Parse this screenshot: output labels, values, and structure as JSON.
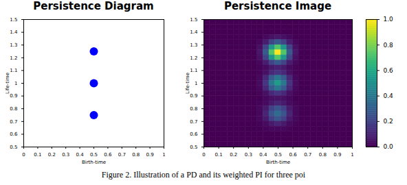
{
  "chart_data": [
    {
      "type": "scatter",
      "title": "Persistence Diagram",
      "x": [
        0.5,
        0.5,
        0.5
      ],
      "y": [
        0.75,
        1.0,
        1.25
      ],
      "color": "#0000ff",
      "xlabel": "Birth-time",
      "ylabel": "Life-time",
      "xlim": [
        0,
        1
      ],
      "ylim": [
        0.5,
        1.5
      ],
      "xticks": [
        0,
        0.1,
        0.2,
        0.3,
        0.4,
        0.5,
        0.6,
        0.7,
        0.8,
        0.9,
        1
      ],
      "yticks": [
        0.5,
        0.6,
        0.7,
        0.8,
        0.9,
        1,
        1.1,
        1.2,
        1.3,
        1.4,
        1.5
      ]
    },
    {
      "type": "heatmap",
      "title": "Persistence Image",
      "xlabel": "Birth-time",
      "ylabel": "Life-time",
      "xlim": [
        0,
        1
      ],
      "ylim": [
        0.5,
        1.5
      ],
      "xticks": [
        0,
        0.1,
        0.2,
        0.3,
        0.4,
        0.5,
        0.6,
        0.7,
        0.8,
        0.9,
        1
      ],
      "yticks": [
        0.5,
        0.6,
        0.7,
        0.8,
        0.9,
        1,
        1.1,
        1.2,
        1.3,
        1.4,
        1.5
      ],
      "z": [
        [
          0,
          0,
          0,
          0,
          0,
          0,
          0,
          0,
          0,
          0,
          0,
          0,
          0,
          0,
          0,
          0,
          0,
          0,
          0,
          0,
          0,
          0,
          0,
          0,
          0
        ],
        [
          0,
          0,
          0,
          0,
          0,
          0,
          0,
          0,
          0,
          0,
          0,
          0,
          0,
          0,
          0,
          0,
          0,
          0,
          0,
          0,
          0,
          0,
          0,
          0,
          0
        ],
        [
          0,
          0,
          0,
          0,
          0,
          0,
          0,
          0,
          0,
          0,
          0,
          0,
          0,
          0,
          0,
          0,
          0,
          0,
          0,
          0,
          0,
          0,
          0,
          0,
          0
        ],
        [
          0,
          0,
          0,
          0,
          0,
          0,
          0,
          0,
          0,
          0,
          0.02,
          0.04,
          0.06,
          0.04,
          0.02,
          0,
          0,
          0,
          0,
          0,
          0,
          0,
          0,
          0,
          0
        ],
        [
          0,
          0,
          0,
          0,
          0,
          0,
          0,
          0,
          0,
          0.02,
          0.08,
          0.2,
          0.28,
          0.2,
          0.08,
          0.02,
          0,
          0,
          0,
          0,
          0,
          0,
          0,
          0,
          0
        ],
        [
          0,
          0,
          0,
          0,
          0,
          0,
          0,
          0,
          0,
          0.04,
          0.2,
          0.53,
          0.73,
          0.53,
          0.2,
          0.04,
          0,
          0,
          0,
          0,
          0,
          0,
          0,
          0,
          0
        ],
        [
          0,
          0,
          0,
          0,
          0,
          0,
          0,
          0,
          0,
          0.06,
          0.28,
          0.73,
          1,
          0.73,
          0.28,
          0.06,
          0,
          0,
          0,
          0,
          0,
          0,
          0,
          0,
          0
        ],
        [
          0,
          0,
          0,
          0,
          0,
          0,
          0,
          0,
          0,
          0.04,
          0.2,
          0.53,
          0.73,
          0.53,
          0.2,
          0.04,
          0,
          0,
          0,
          0,
          0,
          0,
          0,
          0,
          0
        ],
        [
          0,
          0,
          0,
          0,
          0,
          0,
          0,
          0,
          0,
          0.02,
          0.08,
          0.2,
          0.28,
          0.2,
          0.08,
          0.02,
          0,
          0,
          0,
          0,
          0,
          0,
          0,
          0,
          0
        ],
        [
          0,
          0,
          0,
          0,
          0,
          0,
          0,
          0,
          0,
          0.01,
          0.03,
          0.07,
          0.09,
          0.07,
          0.03,
          0.01,
          0,
          0,
          0,
          0,
          0,
          0,
          0,
          0,
          0
        ],
        [
          0,
          0,
          0,
          0,
          0,
          0,
          0,
          0,
          0,
          0.01,
          0.04,
          0.11,
          0.15,
          0.11,
          0.04,
          0.01,
          0,
          0,
          0,
          0,
          0,
          0,
          0,
          0,
          0
        ],
        [
          0,
          0,
          0,
          0,
          0,
          0,
          0,
          0,
          0,
          0.02,
          0.11,
          0.29,
          0.4,
          0.29,
          0.11,
          0.02,
          0,
          0,
          0,
          0,
          0,
          0,
          0,
          0,
          0
        ],
        [
          0,
          0,
          0,
          0,
          0,
          0,
          0,
          0,
          0,
          0.03,
          0.15,
          0.4,
          0.55,
          0.4,
          0.15,
          0.03,
          0,
          0,
          0,
          0,
          0,
          0,
          0,
          0,
          0
        ],
        [
          0,
          0,
          0,
          0,
          0,
          0,
          0,
          0,
          0,
          0.02,
          0.11,
          0.29,
          0.4,
          0.29,
          0.11,
          0.02,
          0,
          0,
          0,
          0,
          0,
          0,
          0,
          0,
          0
        ],
        [
          0,
          0,
          0,
          0,
          0,
          0,
          0,
          0,
          0,
          0.01,
          0.04,
          0.11,
          0.15,
          0.11,
          0.04,
          0.01,
          0,
          0,
          0,
          0,
          0,
          0,
          0,
          0,
          0
        ],
        [
          0,
          0,
          0,
          0,
          0,
          0,
          0,
          0,
          0,
          0,
          0.02,
          0.04,
          0.05,
          0.04,
          0.02,
          0,
          0,
          0,
          0,
          0,
          0,
          0,
          0,
          0,
          0
        ],
        [
          0,
          0,
          0,
          0,
          0,
          0,
          0,
          0,
          0,
          0.01,
          0.03,
          0.07,
          0.1,
          0.07,
          0.03,
          0.01,
          0,
          0,
          0,
          0,
          0,
          0,
          0,
          0,
          0
        ],
        [
          0,
          0,
          0,
          0,
          0,
          0,
          0,
          0,
          0,
          0.02,
          0.07,
          0.19,
          0.26,
          0.19,
          0.07,
          0.02,
          0,
          0,
          0,
          0,
          0,
          0,
          0,
          0,
          0
        ],
        [
          0,
          0,
          0,
          0,
          0,
          0,
          0,
          0,
          0,
          0.02,
          0.1,
          0.26,
          0.35,
          0.26,
          0.1,
          0.02,
          0,
          0,
          0,
          0,
          0,
          0,
          0,
          0,
          0
        ],
        [
          0,
          0,
          0,
          0,
          0,
          0,
          0,
          0,
          0,
          0.02,
          0.07,
          0.19,
          0.26,
          0.19,
          0.07,
          0.02,
          0,
          0,
          0,
          0,
          0,
          0,
          0,
          0,
          0
        ],
        [
          0,
          0,
          0,
          0,
          0,
          0,
          0,
          0,
          0,
          0.01,
          0.03,
          0.07,
          0.1,
          0.07,
          0.03,
          0.01,
          0,
          0,
          0,
          0,
          0,
          0,
          0,
          0,
          0
        ],
        [
          0,
          0,
          0,
          0,
          0,
          0,
          0,
          0,
          0,
          0,
          0.01,
          0.02,
          0.02,
          0.02,
          0.01,
          0,
          0,
          0,
          0,
          0,
          0,
          0,
          0,
          0,
          0
        ],
        [
          0,
          0,
          0,
          0,
          0,
          0,
          0,
          0,
          0,
          0,
          0,
          0,
          0,
          0,
          0,
          0,
          0,
          0,
          0,
          0,
          0,
          0,
          0,
          0,
          0
        ],
        [
          0,
          0,
          0,
          0,
          0,
          0,
          0,
          0,
          0,
          0,
          0,
          0,
          0,
          0,
          0,
          0,
          0,
          0,
          0,
          0,
          0,
          0,
          0,
          0,
          0
        ],
        [
          0,
          0,
          0,
          0,
          0,
          0,
          0,
          0,
          0,
          0,
          0,
          0,
          0,
          0,
          0,
          0,
          0,
          0,
          0,
          0,
          0,
          0,
          0,
          0,
          0
        ]
      ],
      "colorbar": {
        "range": [
          0,
          1
        ],
        "ticks": [
          {
            "value": 0,
            "label": "0.0"
          },
          {
            "value": 0.2,
            "label": "0.2"
          },
          {
            "value": 0.4,
            "label": "0.4"
          },
          {
            "value": 0.6,
            "label": "0.6"
          },
          {
            "value": 0.8,
            "label": "0.8"
          },
          {
            "value": 1,
            "label": "1.0"
          }
        ]
      }
    }
  ],
  "caption": "Figure 2. Illustration of a PD and its weighted PI for three poi"
}
